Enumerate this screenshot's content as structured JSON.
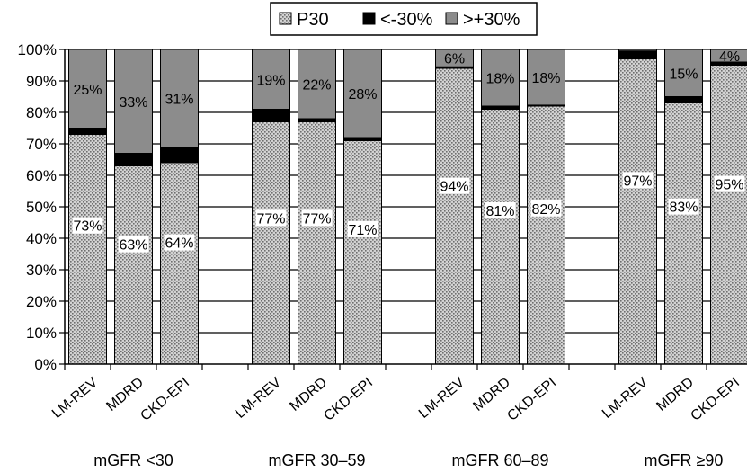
{
  "chart_data": {
    "type": "bar",
    "stacked": true,
    "ylim": [
      0,
      100
    ],
    "yticks": [
      "0%",
      "10%",
      "20%",
      "30%",
      "40%",
      "50%",
      "60%",
      "70%",
      "80%",
      "90%",
      "100%"
    ],
    "grid": true,
    "legend_position": "top",
    "colors": {
      "P30": "#bdbdbd",
      "<-30%": "#000000",
      ">+30%": "#8c8c8c"
    },
    "groups": [
      {
        "label": "mGFR <30",
        "bars": [
          {
            "category": "LM-REV",
            "P30": 73,
            "<-30%": 2,
            ">+30%": 25,
            "p30_label": "73%",
            "over_label": "25%"
          },
          {
            "category": "MDRD",
            "P30": 63,
            "<-30%": 4,
            ">+30%": 33,
            "p30_label": "63%",
            "over_label": "33%"
          },
          {
            "category": "CKD-EPI",
            "P30": 64,
            "<-30%": 5,
            ">+30%": 31,
            "p30_label": "64%",
            "over_label": "31%"
          }
        ]
      },
      {
        "label": "mGFR 30–59",
        "bars": [
          {
            "category": "LM-REV",
            "P30": 77,
            "<-30%": 4,
            ">+30%": 19,
            "p30_label": "77%",
            "over_label": "19%"
          },
          {
            "category": "MDRD",
            "P30": 77,
            "<-30%": 1,
            ">+30%": 22,
            "p30_label": "77%",
            "over_label": "22%"
          },
          {
            "category": "CKD-EPI",
            "P30": 71,
            "<-30%": 1,
            ">+30%": 28,
            "p30_label": "71%",
            "over_label": "28%"
          }
        ]
      },
      {
        "label": "mGFR 60–89",
        "bars": [
          {
            "category": "LM-REV",
            "P30": 94,
            "<-30%": 0.5,
            ">+30%": 5.5,
            "p30_label": "94%",
            "over_label": "6%"
          },
          {
            "category": "MDRD",
            "P30": 81,
            "<-30%": 1,
            ">+30%": 18,
            "p30_label": "81%",
            "over_label": "18%"
          },
          {
            "category": "CKD-EPI",
            "P30": 82,
            "<-30%": 0.3,
            ">+30%": 17.7,
            "p30_label": "82%",
            "over_label": "18%"
          }
        ]
      },
      {
        "label": "mGFR ≥90",
        "bars": [
          {
            "category": "LM-REV",
            "P30": 97,
            "<-30%": 2.5,
            ">+30%": 0.5,
            "p30_label": "97%",
            "over_label": ""
          },
          {
            "category": "MDRD",
            "P30": 83,
            "<-30%": 2,
            ">+30%": 15,
            "p30_label": "83%",
            "over_label": "15%"
          },
          {
            "category": "CKD-EPI",
            "P30": 95,
            "<-30%": 1,
            ">+30%": 4,
            "p30_label": "95%",
            "over_label": "4%"
          }
        ]
      }
    ],
    "legend": [
      {
        "key": "P30",
        "label": "P30"
      },
      {
        "key": "<-30%",
        "label": "<-30%"
      },
      {
        "key": ">+30%",
        "label": ">+30%"
      }
    ]
  }
}
